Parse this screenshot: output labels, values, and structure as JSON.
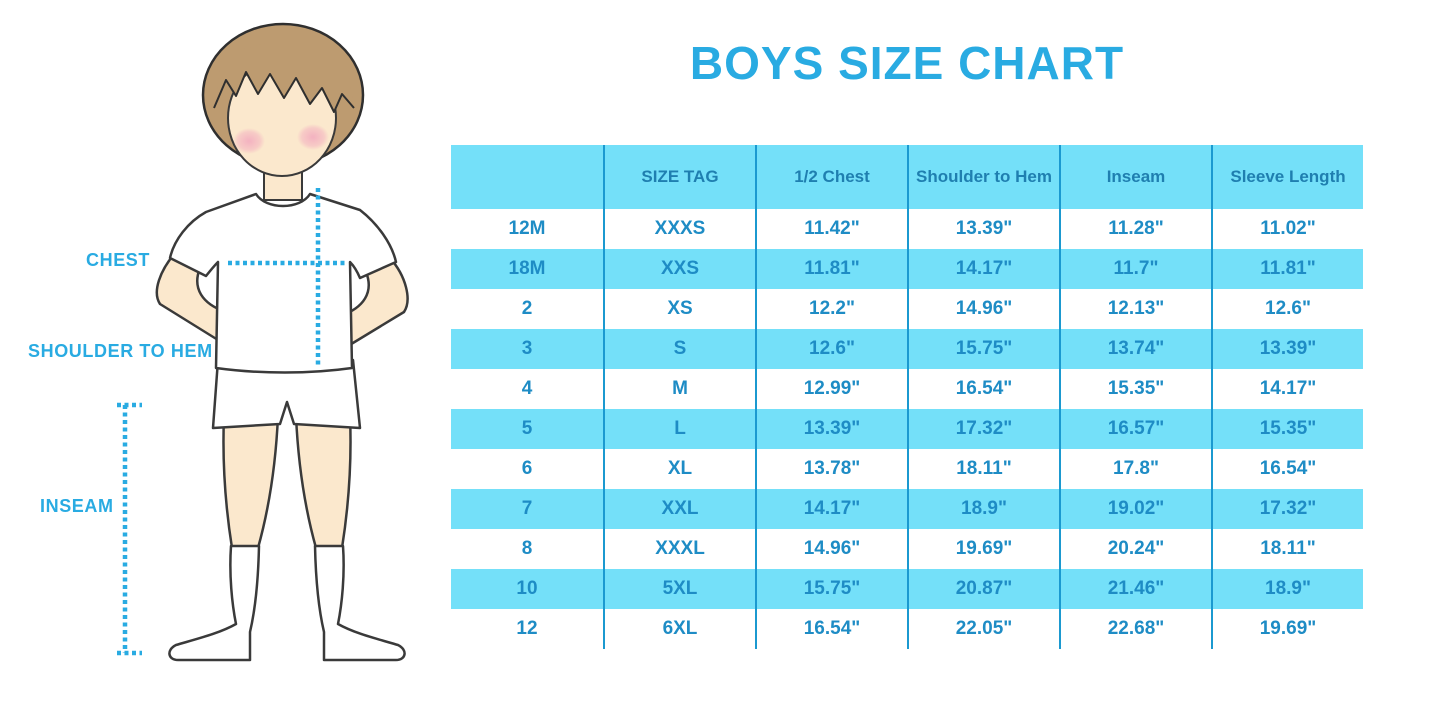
{
  "title": "BOYS SIZE CHART",
  "colors": {
    "accent_cyan": "#29ABE2",
    "row_band": "#74E0F9",
    "grid_line": "#1B99D0",
    "header_text": "#1F7FB0",
    "body_text": "#1E8CC5",
    "hair": "#BD9B70",
    "skin": "#FBE8CD",
    "cheek": "#F2A8BE",
    "outline": "#3a3a3a"
  },
  "figure": {
    "labels": {
      "chest": "CHEST",
      "shoulder_to_hem": "SHOULDER TO HEM",
      "inseam": "INSEAM"
    }
  },
  "chart_data": {
    "type": "table",
    "title": "BOYS SIZE CHART",
    "columns": [
      "",
      "SIZE TAG",
      "1/2 Chest",
      "Shoulder to Hem",
      "Inseam",
      "Sleeve Length"
    ],
    "rows": [
      [
        "12M",
        "XXXS",
        "11.42\"",
        "13.39\"",
        "11.28\"",
        "11.02\""
      ],
      [
        "18M",
        "XXS",
        "11.81\"",
        "14.17\"",
        "11.7\"",
        "11.81\""
      ],
      [
        "2",
        "XS",
        "12.2\"",
        "14.96\"",
        "12.13\"",
        "12.6\""
      ],
      [
        "3",
        "S",
        "12.6\"",
        "15.75\"",
        "13.74\"",
        "13.39\""
      ],
      [
        "4",
        "M",
        "12.99\"",
        "16.54\"",
        "15.35\"",
        "14.17\""
      ],
      [
        "5",
        "L",
        "13.39\"",
        "17.32\"",
        "16.57\"",
        "15.35\""
      ],
      [
        "6",
        "XL",
        "13.78\"",
        "18.11\"",
        "17.8\"",
        "16.54\""
      ],
      [
        "7",
        "XXL",
        "14.17\"",
        "18.9\"",
        "19.02\"",
        "17.32\""
      ],
      [
        "8",
        "XXXL",
        "14.96\"",
        "19.69\"",
        "20.24\"",
        "18.11\""
      ],
      [
        "10",
        "5XL",
        "15.75\"",
        "20.87\"",
        "21.46\"",
        "18.9\""
      ],
      [
        "12",
        "6XL",
        "16.54\"",
        "22.05\"",
        "22.68\"",
        "19.69\""
      ]
    ],
    "layout": {
      "striping": "header and alternate rows light cyan, others white",
      "grid": "internal vertical separators only",
      "units": "inches"
    }
  }
}
